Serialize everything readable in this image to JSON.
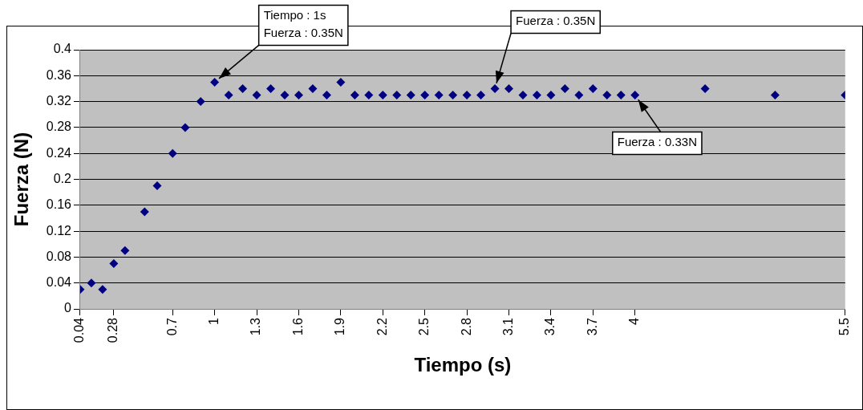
{
  "chart_data": {
    "type": "scatter",
    "xlabel": "Tiempo (s)",
    "ylabel": "Fuerza (N)",
    "x": [
      0.04,
      0.12,
      0.2,
      0.28,
      0.36,
      0.5,
      0.59,
      0.7,
      0.79,
      0.9,
      1,
      1.1,
      1.2,
      1.3,
      1.4,
      1.5,
      1.6,
      1.7,
      1.8,
      1.9,
      2,
      2.1,
      2.2,
      2.3,
      2.4,
      2.5,
      2.6,
      2.7,
      2.8,
      2.9,
      3,
      3.1,
      3.2,
      3.3,
      3.4,
      3.5,
      3.6,
      3.7,
      3.8,
      3.9,
      4,
      4.5,
      5,
      5.5
    ],
    "series": [
      {
        "color": "#000080",
        "values": [
          0.03,
          0.04,
          0.03,
          0.07,
          0.09,
          0.15,
          0.19,
          0.24,
          0.28,
          0.32,
          0.35,
          0.33,
          0.34,
          0.33,
          0.34,
          0.33,
          0.33,
          0.34,
          0.33,
          0.35,
          0.33,
          0.33,
          0.33,
          0.33,
          0.33,
          0.33,
          0.33,
          0.33,
          0.33,
          0.33,
          0.34,
          0.34,
          0.33,
          0.33,
          0.33,
          0.34,
          0.33,
          0.34,
          0.33,
          0.33,
          0.33,
          0.34,
          0.33,
          0.33
        ]
      }
    ],
    "xlim": [
      0.04,
      5.5
    ],
    "xticks": [
      0.04,
      0.28,
      0.7,
      1,
      1.3,
      1.6,
      1.9,
      2.2,
      2.5,
      2.8,
      3.1,
      3.4,
      3.7,
      4,
      5.5
    ],
    "ylim": [
      0,
      0.4
    ],
    "yticks": [
      0,
      0.04,
      0.08,
      0.12,
      0.16,
      0.2,
      0.24,
      0.28,
      0.32,
      0.36,
      0.4
    ],
    "grid": "y",
    "legend": false,
    "marker": "diamond",
    "annotations": [
      {
        "text": "Tiempo : 1s\nFuerza : 0.35N",
        "x": 1,
        "y": 0.35
      },
      {
        "text": "Fuerza : 0.35N",
        "x": 3,
        "y": 0.34
      },
      {
        "text": "Fuerza : 0.33N",
        "x": 4,
        "y": 0.33
      }
    ]
  }
}
